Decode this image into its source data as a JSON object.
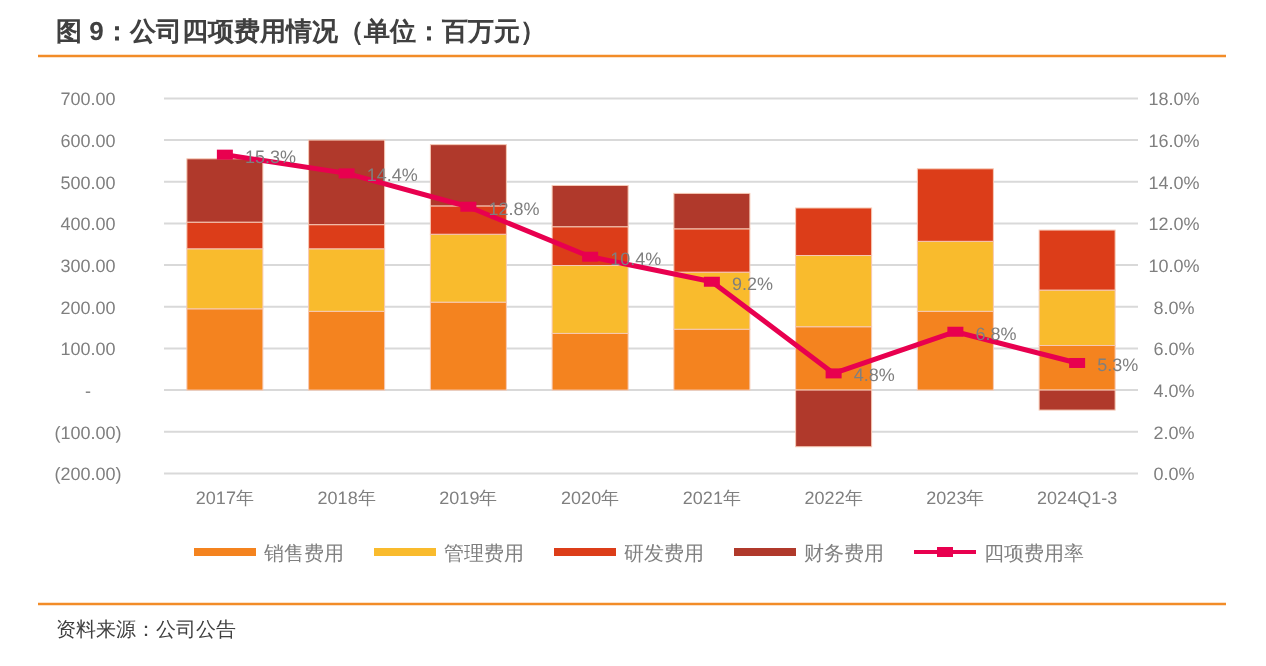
{
  "chart_data": {
    "type": "bar",
    "title": "图 9：公司四项费用情况（单位：百万元）",
    "categories": [
      "2017年",
      "2018年",
      "2019年",
      "2020年",
      "2021年",
      "2022年",
      "2023年",
      "2024Q1-3"
    ],
    "stacked": true,
    "series": [
      {
        "name": "销售费用",
        "color": "#f4831f",
        "values": [
          195,
          189,
          211,
          136,
          146,
          152,
          189,
          107
        ]
      },
      {
        "name": "管理费用",
        "color": "#f9bb2d",
        "values": [
          144,
          150,
          163,
          163,
          137,
          171,
          168,
          133
        ]
      },
      {
        "name": "研发费用",
        "color": "#dc3d19",
        "values": [
          64,
          58,
          68,
          93,
          104,
          114,
          174,
          144
        ]
      },
      {
        "name": "财务费用",
        "color": "#b0392b",
        "values": [
          152,
          203,
          147,
          99,
          85,
          -136,
          null,
          -48
        ]
      },
      {
        "name": "四项费用率",
        "type": "line",
        "axis": "y2",
        "color": "#e8004f",
        "marker": "square",
        "value_labels": [
          "15.3%",
          "14.4%",
          "12.8%",
          "10.4%",
          "9.2%",
          "4.8%",
          "6.8%",
          "5.3%"
        ],
        "values": [
          15.3,
          14.4,
          12.8,
          10.4,
          9.2,
          4.8,
          6.8,
          5.3
        ]
      }
    ],
    "ylim": [
      -200,
      700
    ],
    "yticks": [
      {
        "value": -200,
        "label": "(200.00)"
      },
      {
        "value": -100,
        "label": "(100.00)"
      },
      {
        "value": 0,
        "label": "-"
      },
      {
        "value": 100,
        "label": "100.00"
      },
      {
        "value": 200,
        "label": "200.00"
      },
      {
        "value": 300,
        "label": "300.00"
      },
      {
        "value": 400,
        "label": "400.00"
      },
      {
        "value": 500,
        "label": "500.00"
      },
      {
        "value": 600,
        "label": "600.00"
      },
      {
        "value": 700,
        "label": "700.00"
      }
    ],
    "y2lim": [
      0,
      18
    ],
    "y2ticks": [
      {
        "value": 0,
        "label": "0.0%"
      },
      {
        "value": 2,
        "label": "2.0%"
      },
      {
        "value": 4,
        "label": "4.0%"
      },
      {
        "value": 6,
        "label": "6.0%"
      },
      {
        "value": 8,
        "label": "8.0%"
      },
      {
        "value": 10,
        "label": "10.0%"
      },
      {
        "value": 12,
        "label": "12.0%"
      },
      {
        "value": 14,
        "label": "14.0%"
      },
      {
        "value": 16,
        "label": "16.0%"
      },
      {
        "value": 18,
        "label": "18.0%"
      }
    ],
    "grid": "y",
    "legend": "bottom",
    "annotations": [
      "资料来源：公司公告"
    ]
  }
}
